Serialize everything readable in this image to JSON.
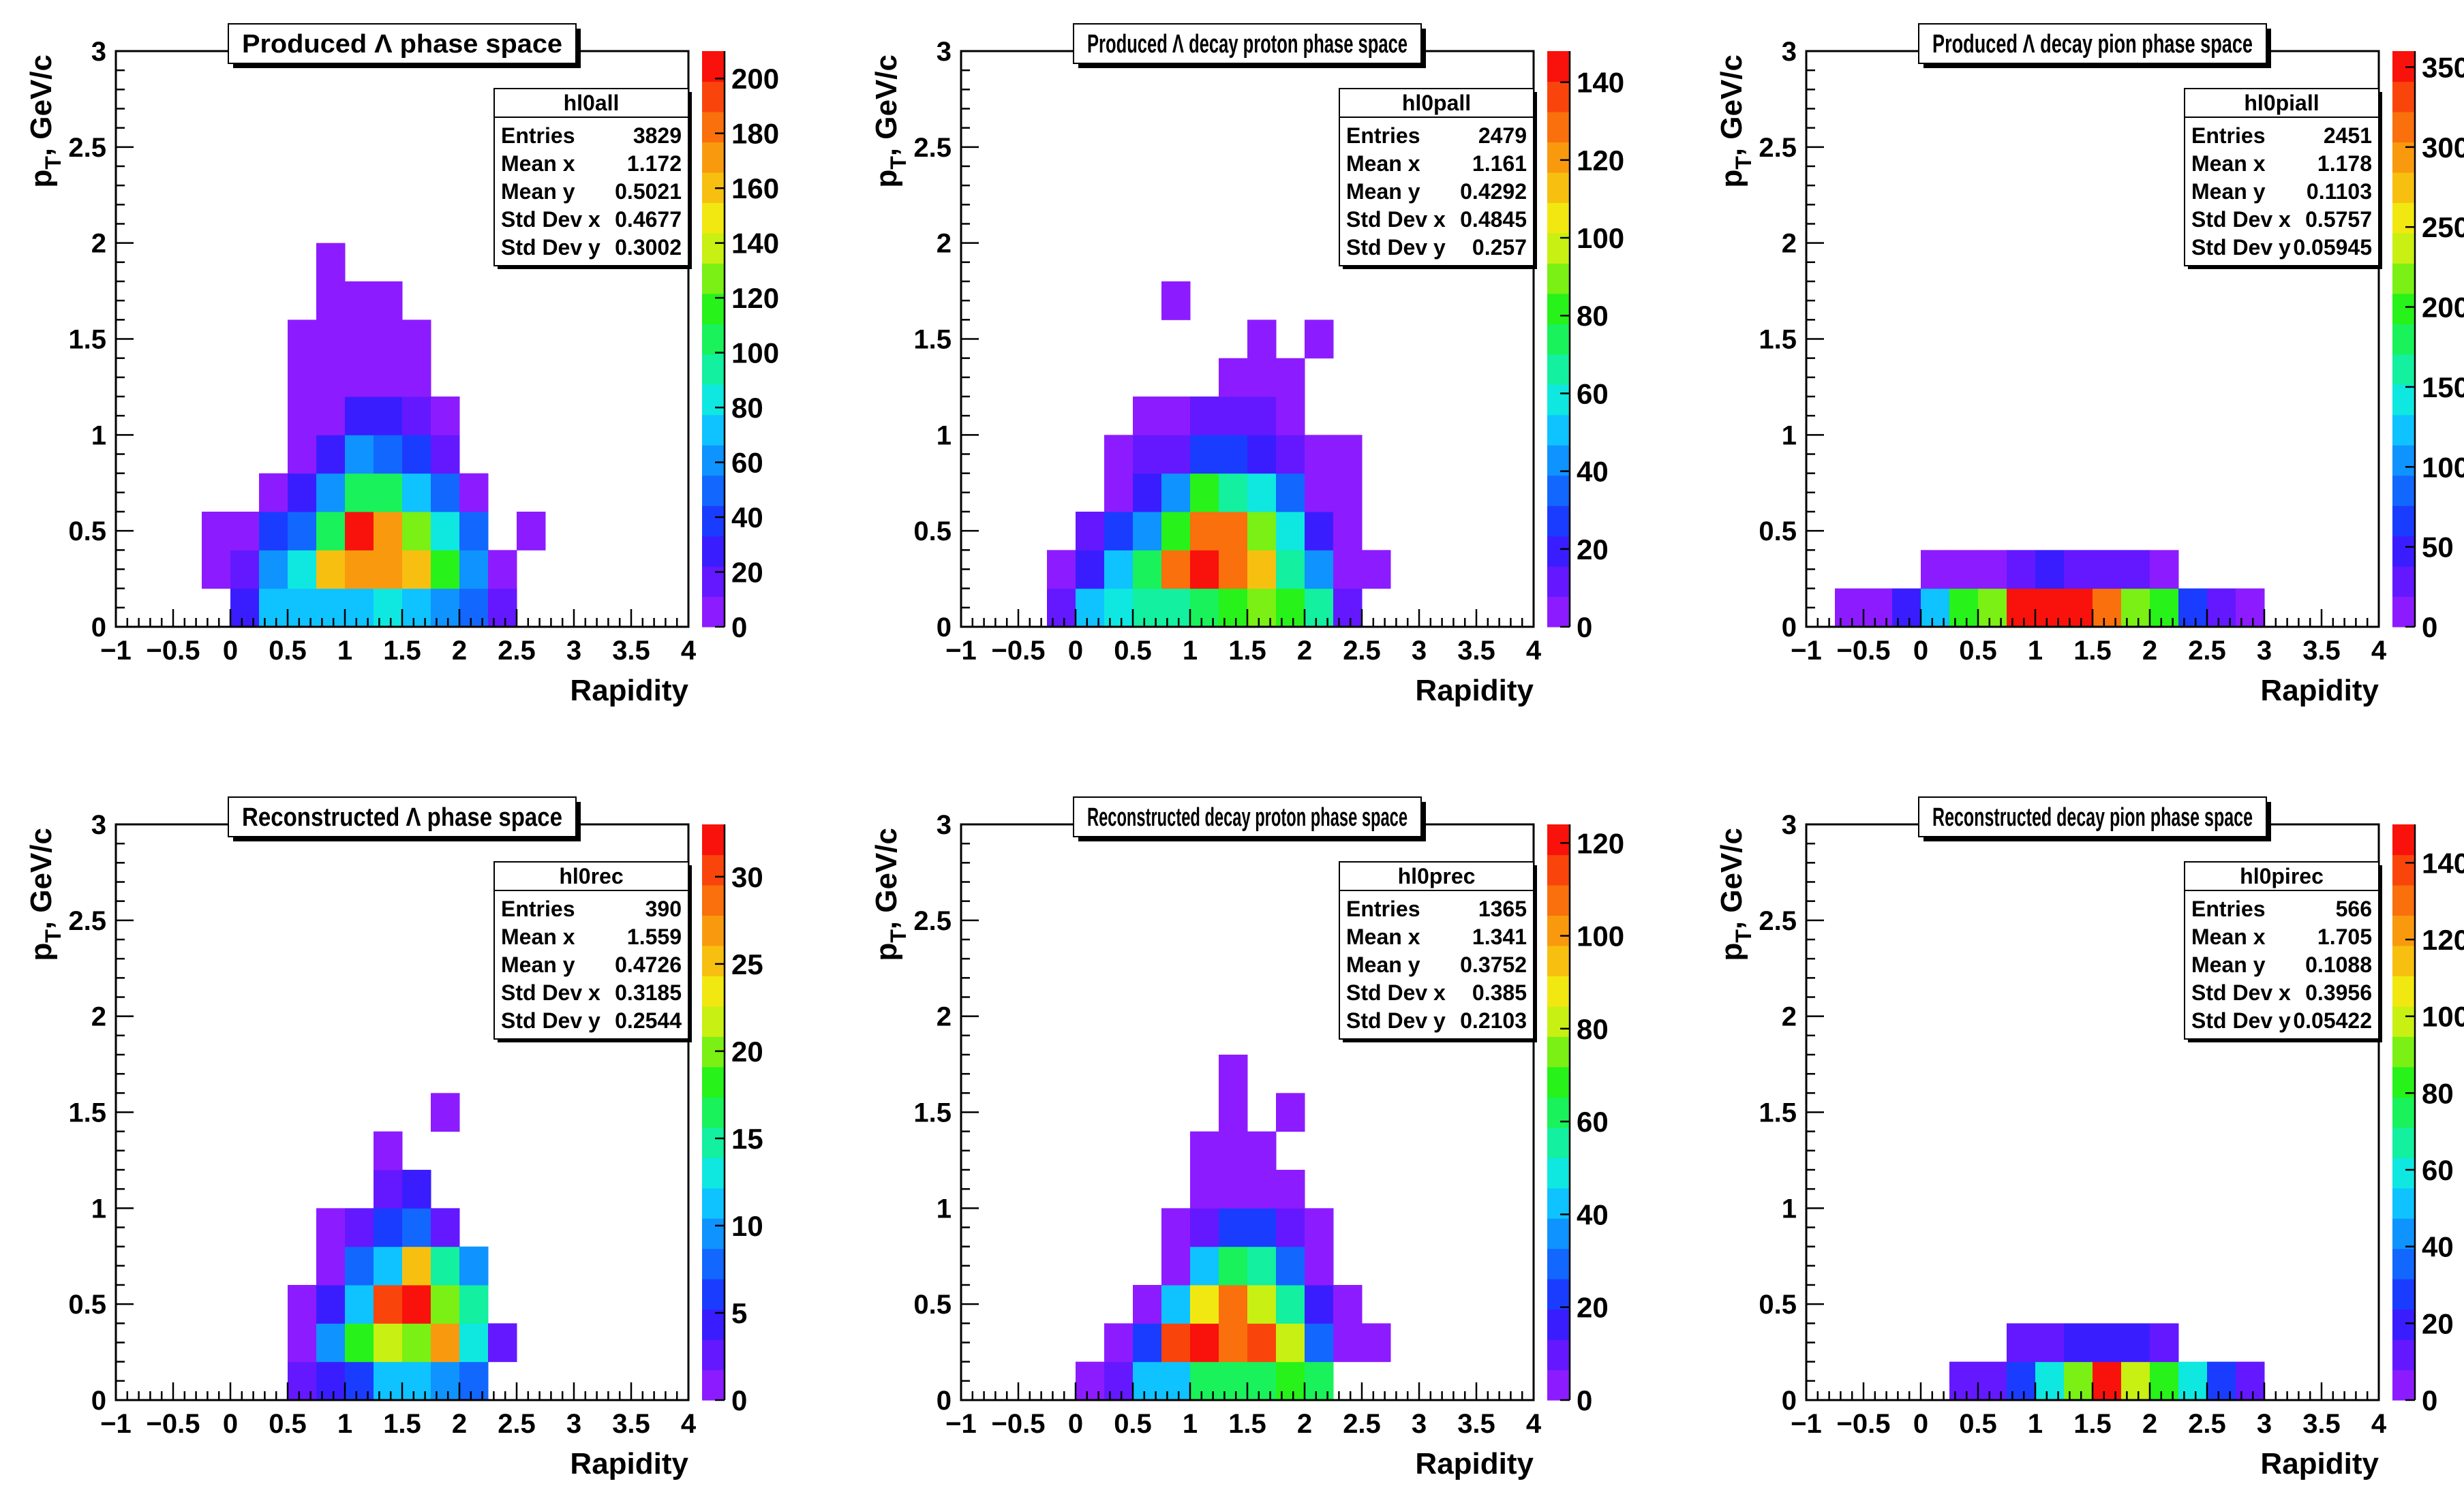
{
  "chart_data": [
    {
      "type": "heatmap",
      "title": "Produced Λ phase space",
      "xlabel": "Rapidity",
      "ylabel": "p",
      "ylabel_sub": "T",
      "ylabel_suffix": ", GeV/c",
      "xlim": [
        -1,
        4
      ],
      "ylim": [
        0,
        3
      ],
      "xticks": [
        "−1",
        "−0.5",
        "0",
        "0.5",
        "1",
        "1.5",
        "2",
        "2.5",
        "3",
        "3.5",
        "4"
      ],
      "yticks": [
        "0",
        "0.5",
        "1",
        "1.5",
        "2",
        "2.5",
        "3"
      ],
      "bin_dx": 0.25,
      "bin_dy": 0.2,
      "zmax": 210,
      "zticks": [
        "0",
        "20",
        "40",
        "60",
        "80",
        "100",
        "120",
        "140",
        "160",
        "180",
        "200"
      ],
      "stats": {
        "name": "hl0all",
        "rows": [
          [
            "Entries",
            "3829"
          ],
          [
            "Mean x",
            "1.172"
          ],
          [
            "Mean y",
            "0.5021"
          ],
          [
            "Std Dev x",
            "0.4677"
          ],
          [
            "Std Dev y",
            "0.3002"
          ]
        ]
      },
      "cells": [
        {
          "x0": -0.25,
          "y0": 0.0,
          "values": [
            0,
            6,
            3
          ]
        },
        {
          "x0": 0.0,
          "y0": 0.0,
          "values": [
            28,
            20,
            8
          ]
        },
        {
          "x0": 0.25,
          "y0": 0.0,
          "values": [
            70,
            60,
            35,
            8
          ]
        },
        {
          "x0": 0.5,
          "y0": 0.0,
          "values": [
            72,
            85,
            55,
            25,
            8,
            5,
            5,
            5
          ]
        },
        {
          "x0": 0.75,
          "y0": 0.0,
          "values": [
            72,
            160,
            110,
            60,
            25,
            8,
            5,
            5,
            5,
            5
          ]
        },
        {
          "x0": 1.0,
          "y0": 0.0,
          "values": [
            75,
            170,
            200,
            100,
            60,
            25,
            8,
            5,
            5
          ]
        },
        {
          "x0": 1.25,
          "y0": 0.0,
          "values": [
            78,
            175,
            170,
            100,
            55,
            25,
            8,
            5,
            5
          ]
        },
        {
          "x0": 1.5,
          "y0": 0.0,
          "values": [
            72,
            155,
            130,
            75,
            40,
            20,
            5,
            5
          ]
        },
        {
          "x0": 1.75,
          "y0": 0.0,
          "values": [
            65,
            115,
            80,
            45,
            15,
            5
          ]
        },
        {
          "x0": 2.0,
          "y0": 0.0,
          "values": [
            55,
            60,
            45,
            8
          ]
        },
        {
          "x0": 2.25,
          "y0": 0.0,
          "values": [
            20,
            6
          ]
        },
        {
          "x0": 2.5,
          "y0": 0.0,
          "values": [
            0,
            0,
            4
          ]
        }
      ]
    },
    {
      "type": "heatmap",
      "title": "Produced Λ decay proton phase space",
      "xlabel": "Rapidity",
      "ylabel": "p",
      "ylabel_sub": "T",
      "ylabel_suffix": ", GeV/c",
      "xlim": [
        -1,
        4
      ],
      "ylim": [
        0,
        3
      ],
      "xticks": [
        "−1",
        "−0.5",
        "0",
        "0.5",
        "1",
        "1.5",
        "2",
        "2.5",
        "3",
        "3.5",
        "4"
      ],
      "yticks": [
        "0",
        "0.5",
        "1",
        "1.5",
        "2",
        "2.5",
        "3"
      ],
      "bin_dx": 0.25,
      "bin_dy": 0.2,
      "zmax": 148,
      "zticks": [
        "0",
        "20",
        "40",
        "60",
        "80",
        "100",
        "120",
        "140"
      ],
      "stats": {
        "name": "hl0pall",
        "rows": [
          [
            "Entries",
            "2479"
          ],
          [
            "Mean x",
            "1.161"
          ],
          [
            "Mean y",
            "0.4292"
          ],
          [
            "Std Dev x",
            "0.4845"
          ],
          [
            "Std Dev y",
            "0.257"
          ]
        ]
      },
      "cells": [
        {
          "x0": -0.25,
          "y0": 0.0,
          "values": [
            12,
            5
          ]
        },
        {
          "x0": 0.0,
          "y0": 0.0,
          "values": [
            50,
            20,
            8
          ]
        },
        {
          "x0": 0.25,
          "y0": 0.0,
          "values": [
            60,
            50,
            25,
            6,
            5
          ]
        },
        {
          "x0": 0.5,
          "y0": 0.0,
          "values": [
            65,
            75,
            40,
            20,
            8,
            5
          ]
        },
        {
          "x0": 0.75,
          "y0": 0.0,
          "values": [
            70,
            130,
            80,
            40,
            12,
            5,
            0,
            0,
            5
          ]
        },
        {
          "x0": 1.0,
          "y0": 0.0,
          "values": [
            72,
            145,
            130,
            80,
            30,
            8
          ]
        },
        {
          "x0": 1.25,
          "y0": 0.0,
          "values": [
            85,
            125,
            125,
            70,
            25,
            8,
            5
          ]
        },
        {
          "x0": 1.5,
          "y0": 0.0,
          "values": [
            88,
            115,
            90,
            60,
            20,
            8,
            5,
            5
          ]
        },
        {
          "x0": 1.75,
          "y0": 0.0,
          "values": [
            80,
            70,
            55,
            35,
            10,
            5,
            5
          ]
        },
        {
          "x0": 2.0,
          "y0": 0.0,
          "values": [
            65,
            40,
            20,
            5,
            5,
            0,
            0,
            5
          ]
        },
        {
          "x0": 2.25,
          "y0": 0.0,
          "values": [
            15,
            5,
            5,
            5,
            5
          ]
        },
        {
          "x0": 2.5,
          "y0": 0.0,
          "values": [
            0,
            5
          ]
        }
      ]
    },
    {
      "type": "heatmap",
      "title": "Produced Λ decay pion phase space",
      "xlabel": "Rapidity",
      "ylabel": "p",
      "ylabel_sub": "T",
      "ylabel_suffix": ", GeV/c",
      "xlim": [
        -1,
        4
      ],
      "ylim": [
        0,
        3
      ],
      "xticks": [
        "−1",
        "−0.5",
        "0",
        "0.5",
        "1",
        "1.5",
        "2",
        "2.5",
        "3",
        "3.5",
        "4"
      ],
      "yticks": [
        "0",
        "0.5",
        "1",
        "1.5",
        "2",
        "2.5",
        "3"
      ],
      "bin_dx": 0.25,
      "bin_dy": 0.2,
      "zmax": 360,
      "zticks": [
        "0",
        "50",
        "100",
        "150",
        "200",
        "250",
        "300",
        "350"
      ],
      "stats": {
        "name": "hl0piall",
        "rows": [
          [
            "Entries",
            "2451"
          ],
          [
            "Mean x",
            "1.178"
          ],
          [
            "Mean y",
            "0.1103"
          ],
          [
            "Std Dev x",
            "0.5757"
          ],
          [
            "Std Dev y",
            "0.05945"
          ]
        ]
      },
      "cells": [
        {
          "x0": -0.75,
          "y0": 0.0,
          "values": [
            10
          ]
        },
        {
          "x0": -0.5,
          "y0": 0.0,
          "values": [
            10
          ]
        },
        {
          "x0": -0.25,
          "y0": 0.0,
          "values": [
            45
          ]
        },
        {
          "x0": 0.0,
          "y0": 0.0,
          "values": [
            130,
            10
          ]
        },
        {
          "x0": 0.25,
          "y0": 0.0,
          "values": [
            200,
            10
          ]
        },
        {
          "x0": 0.5,
          "y0": 0.0,
          "values": [
            220,
            10
          ]
        },
        {
          "x0": 0.75,
          "y0": 0.0,
          "values": [
            345,
            25
          ]
        },
        {
          "x0": 1.0,
          "y0": 0.0,
          "values": [
            350,
            40
          ]
        },
        {
          "x0": 1.25,
          "y0": 0.0,
          "values": [
            345,
            30
          ]
        },
        {
          "x0": 1.5,
          "y0": 0.0,
          "values": [
            320,
            35
          ]
        },
        {
          "x0": 1.75,
          "y0": 0.0,
          "values": [
            210,
            25
          ]
        },
        {
          "x0": 2.0,
          "y0": 0.0,
          "values": [
            190,
            10
          ]
        },
        {
          "x0": 2.25,
          "y0": 0.0,
          "values": [
            60
          ]
        },
        {
          "x0": 2.5,
          "y0": 0.0,
          "values": [
            20
          ]
        },
        {
          "x0": 2.75,
          "y0": 0.0,
          "values": [
            10
          ]
        }
      ]
    },
    {
      "type": "heatmap",
      "title": "Reconstructed Λ phase space",
      "xlabel": "Rapidity",
      "ylabel": "p",
      "ylabel_sub": "T",
      "ylabel_suffix": ", GeV/c",
      "xlim": [
        -1,
        4
      ],
      "ylim": [
        0,
        3
      ],
      "xticks": [
        "−1",
        "−0.5",
        "0",
        "0.5",
        "1",
        "1.5",
        "2",
        "2.5",
        "3",
        "3.5",
        "4"
      ],
      "yticks": [
        "0",
        "0.5",
        "1",
        "1.5",
        "2",
        "2.5",
        "3"
      ],
      "bin_dx": 0.25,
      "bin_dy": 0.2,
      "zmax": 33,
      "zticks": [
        "0",
        "5",
        "10",
        "15",
        "20",
        "25",
        "30"
      ],
      "stats": {
        "name": "hl0rec",
        "rows": [
          [
            "Entries",
            "390"
          ],
          [
            "Mean x",
            "1.559"
          ],
          [
            "Mean y",
            "0.4726"
          ],
          [
            "Std Dev x",
            "0.3185"
          ],
          [
            "Std Dev y",
            "0.2544"
          ]
        ]
      },
      "cells": [
        {
          "x0": 0.5,
          "y0": 0.0,
          "values": [
            2,
            1,
            1
          ]
        },
        {
          "x0": 0.75,
          "y0": 0.0,
          "values": [
            5,
            10,
            4,
            1,
            1
          ]
        },
        {
          "x0": 1.0,
          "y0": 0.0,
          "values": [
            6,
            18,
            12,
            8,
            3
          ]
        },
        {
          "x0": 1.25,
          "y0": 0.0,
          "values": [
            12,
            22,
            30,
            12,
            6,
            2,
            1
          ]
        },
        {
          "x0": 1.5,
          "y0": 0.0,
          "values": [
            12,
            20,
            32,
            26,
            8,
            4
          ]
        },
        {
          "x0": 1.75,
          "y0": 0.0,
          "values": [
            10,
            27,
            20,
            14,
            2,
            0,
            0,
            1
          ]
        },
        {
          "x0": 2.0,
          "y0": 0.0,
          "values": [
            8,
            13,
            14,
            10
          ]
        },
        {
          "x0": 2.25,
          "y0": 0.0,
          "values": [
            0,
            3
          ]
        }
      ]
    },
    {
      "type": "heatmap",
      "title": "Reconstructed decay proton phase space",
      "xlabel": "Rapidity",
      "ylabel": "p",
      "ylabel_sub": "T",
      "ylabel_suffix": ", GeV/c",
      "xlim": [
        -1,
        4
      ],
      "ylim": [
        0,
        3
      ],
      "xticks": [
        "−1",
        "−0.5",
        "0",
        "0.5",
        "1",
        "1.5",
        "2",
        "2.5",
        "3",
        "3.5",
        "4"
      ],
      "yticks": [
        "0",
        "0.5",
        "1",
        "1.5",
        "2",
        "2.5",
        "3"
      ],
      "bin_dx": 0.25,
      "bin_dy": 0.2,
      "zmax": 124,
      "zticks": [
        "0",
        "20",
        "40",
        "60",
        "80",
        "100",
        "120"
      ],
      "stats": {
        "name": "hl0prec",
        "rows": [
          [
            "Entries",
            "1365"
          ],
          [
            "Mean x",
            "1.341"
          ],
          [
            "Mean y",
            "0.3752"
          ],
          [
            "Std Dev x",
            "0.385"
          ],
          [
            "Std Dev y",
            "0.2103"
          ]
        ]
      },
      "cells": [
        {
          "x0": 0.0,
          "y0": 0.0,
          "values": [
            5
          ]
        },
        {
          "x0": 0.25,
          "y0": 0.0,
          "values": [
            12,
            5
          ]
        },
        {
          "x0": 0.5,
          "y0": 0.0,
          "values": [
            40,
            20,
            5
          ]
        },
        {
          "x0": 0.75,
          "y0": 0.0,
          "values": [
            45,
            115,
            40,
            5,
            5
          ]
        },
        {
          "x0": 1.0,
          "y0": 0.0,
          "values": [
            60,
            120,
            85,
            45,
            10,
            5,
            5
          ]
        },
        {
          "x0": 1.25,
          "y0": 0.0,
          "values": [
            65,
            110,
            105,
            60,
            20,
            5,
            5,
            5,
            5
          ]
        },
        {
          "x0": 1.5,
          "y0": 0.0,
          "values": [
            60,
            115,
            80,
            55,
            20,
            5,
            5
          ]
        },
        {
          "x0": 1.75,
          "y0": 0.0,
          "values": [
            70,
            80,
            55,
            30,
            10,
            5,
            0,
            5
          ]
        },
        {
          "x0": 2.0,
          "y0": 0.0,
          "values": [
            60,
            30,
            15,
            5,
            5
          ]
        },
        {
          "x0": 2.25,
          "y0": 0.0,
          "values": [
            0,
            5,
            5
          ]
        },
        {
          "x0": 2.5,
          "y0": 0.0,
          "values": [
            0,
            5
          ]
        }
      ]
    },
    {
      "type": "heatmap",
      "title": "Reconstructed decay pion phase space",
      "xlabel": "Rapidity",
      "ylabel": "p",
      "ylabel_sub": "T",
      "ylabel_suffix": ", GeV/c",
      "xlim": [
        -1,
        4
      ],
      "ylim": [
        0,
        3
      ],
      "xticks": [
        "−1",
        "−0.5",
        "0",
        "0.5",
        "1",
        "1.5",
        "2",
        "2.5",
        "3",
        "3.5",
        "4"
      ],
      "yticks": [
        "0",
        "0.5",
        "1",
        "1.5",
        "2",
        "2.5",
        "3"
      ],
      "bin_dx": 0.25,
      "bin_dy": 0.2,
      "zmax": 150,
      "zticks": [
        "0",
        "20",
        "40",
        "60",
        "80",
        "100",
        "120",
        "140"
      ],
      "stats": {
        "name": "hl0pirec",
        "rows": [
          [
            "Entries",
            "566"
          ],
          [
            "Mean x",
            "1.705"
          ],
          [
            "Mean y",
            "0.1088"
          ],
          [
            "Std Dev x",
            "0.3956"
          ],
          [
            "Std Dev y",
            "0.05422"
          ]
        ]
      },
      "cells": [
        {
          "x0": 0.25,
          "y0": 0.0,
          "values": [
            8
          ]
        },
        {
          "x0": 0.5,
          "y0": 0.0,
          "values": [
            10
          ]
        },
        {
          "x0": 0.75,
          "y0": 0.0,
          "values": [
            30,
            10
          ]
        },
        {
          "x0": 1.0,
          "y0": 0.0,
          "values": [
            60,
            15
          ]
        },
        {
          "x0": 1.25,
          "y0": 0.0,
          "values": [
            90,
            20
          ]
        },
        {
          "x0": 1.5,
          "y0": 0.0,
          "values": [
            145,
            20
          ]
        },
        {
          "x0": 1.75,
          "y0": 0.0,
          "values": [
            95,
            20
          ]
        },
        {
          "x0": 2.0,
          "y0": 0.0,
          "values": [
            85,
            10
          ]
        },
        {
          "x0": 2.25,
          "y0": 0.0,
          "values": [
            60
          ]
        },
        {
          "x0": 2.5,
          "y0": 0.0,
          "values": [
            25
          ]
        },
        {
          "x0": 2.75,
          "y0": 0.0,
          "values": [
            10
          ]
        }
      ]
    }
  ]
}
